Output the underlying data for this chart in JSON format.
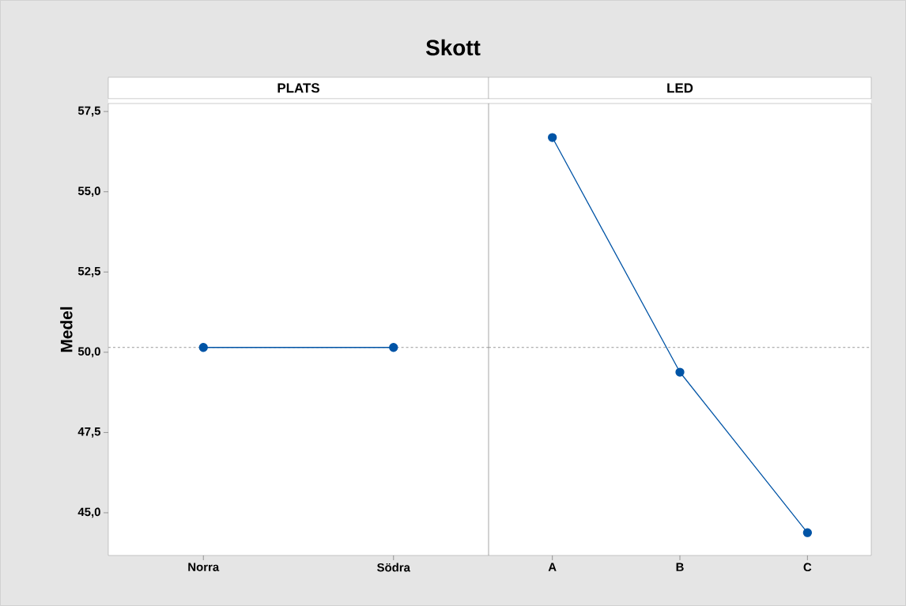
{
  "chart_data": [
    {
      "type": "line",
      "title": "Skott",
      "subtitle": "PLATS",
      "ylabel": "Medel",
      "categories": [
        "Norra",
        "Södra"
      ],
      "values": [
        50.15,
        50.15
      ],
      "color": "#0054a6",
      "marker": "circle",
      "line_style": "solid",
      "ylim": [
        43.67,
        57.75
      ],
      "yticks": [
        {
          "value": 45,
          "label": "45,0"
        },
        {
          "value": 47.5,
          "label": "47,5"
        },
        {
          "value": 50,
          "label": "50,0"
        },
        {
          "value": 52.5,
          "label": "52,5"
        },
        {
          "value": 55,
          "label": "55,0"
        },
        {
          "value": 57.5,
          "label": "57,5"
        }
      ],
      "ref_lines": [
        {
          "axis": "y",
          "value": 50.15,
          "color": "#9a9a9a",
          "line_style": "dashed"
        }
      ],
      "grid": false
    },
    {
      "type": "line",
      "subtitle": "LED",
      "categories": [
        "A",
        "B",
        "C"
      ],
      "values": [
        56.69,
        49.38,
        44.38
      ],
      "color": "#0054a6",
      "marker": "circle",
      "line_style": "solid",
      "ylim": [
        43.67,
        57.75
      ],
      "tick_labels": "x",
      "ref_lines": [
        {
          "axis": "y",
          "value": 50.15,
          "color": "#9a9a9a",
          "line_style": "dashed"
        }
      ],
      "grid": false
    }
  ]
}
